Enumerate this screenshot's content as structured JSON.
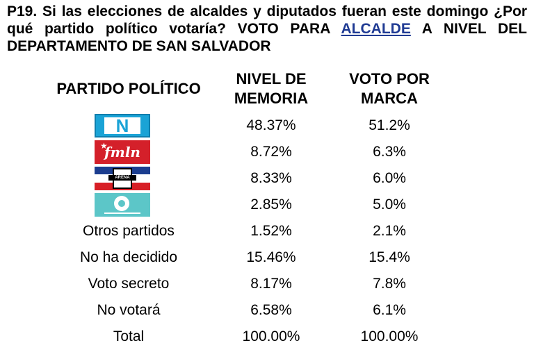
{
  "question": {
    "prefix": "P19. Si las elecciones de alcaldes y diputados fueran este domingo ¿Por qué partido político votaría? VOTO PARA ",
    "highlight": "ALCALDE",
    "suffix": " A NIVEL DEL DEPARTAMENTO DE SAN SALVADOR"
  },
  "headers": {
    "party": "PARTIDO POLÍTICO",
    "memory_line1": "NIVEL DE",
    "memory_line2": "MEMORIA",
    "vote_line1": "VOTO POR",
    "vote_line2": "MARCA"
  },
  "logos": {
    "nuevas_ideas_letter": "N",
    "fmln_text": "fmln",
    "arena_text": "ARENA"
  },
  "rows": [
    {
      "party": "",
      "logo": "nuevas-ideas-logo",
      "memory": "48.37%",
      "vote": "51.2%"
    },
    {
      "party": "",
      "logo": "fmln-logo",
      "memory": "8.72%",
      "vote": "6.3%"
    },
    {
      "party": "",
      "logo": "arena-logo",
      "memory": "8.33%",
      "vote": "6.0%"
    },
    {
      "party": "",
      "logo": "vamos-logo",
      "memory": "2.85%",
      "vote": "5.0%"
    },
    {
      "party": "Otros partidos",
      "memory": "1.52%",
      "vote": "2.1%"
    },
    {
      "party": "No ha decidido",
      "memory": "15.46%",
      "vote": "15.4%"
    },
    {
      "party": "Voto secreto",
      "memory": "8.17%",
      "vote": "7.8%"
    },
    {
      "party": "No votará",
      "memory": "6.58%",
      "vote": "6.1%"
    },
    {
      "party": "Total",
      "memory": "100.00%",
      "vote": "100.00%"
    }
  ],
  "colors": {
    "highlight": "#1f3a93",
    "nuevas_ideas": "#1aa3d6",
    "fmln": "#d4202a",
    "arena_blue": "#1b3d8f",
    "arena_red": "#d71f26",
    "vamos": "#5cc6c8"
  }
}
